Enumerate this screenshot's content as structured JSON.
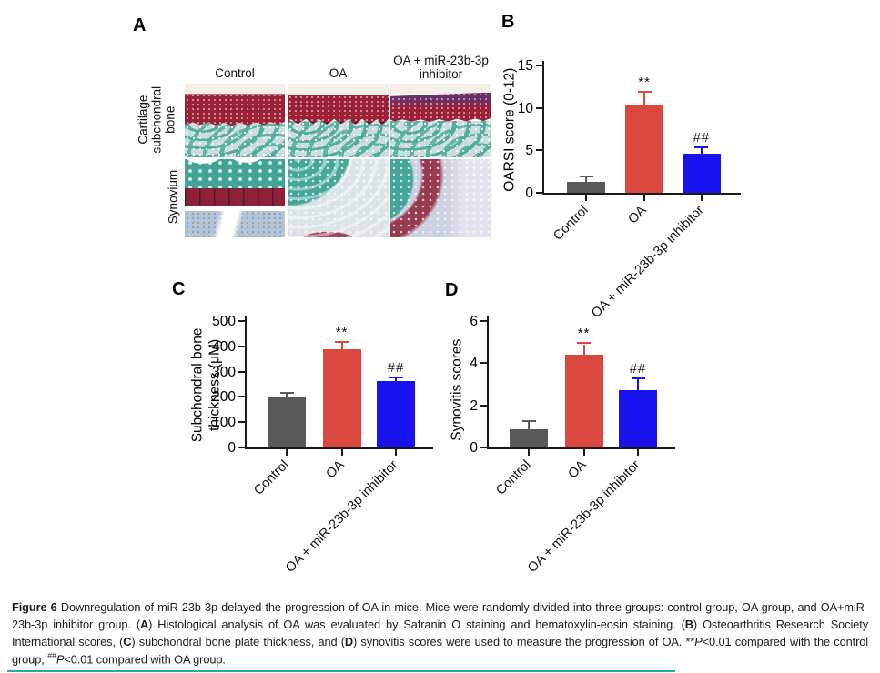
{
  "panels": {
    "a": "A",
    "b": "B",
    "c": "C",
    "d": "D"
  },
  "panel_a": {
    "column_headers": [
      "Control",
      "OA",
      "OA + miR-23b-3p inhibitor"
    ],
    "row_headers": [
      "Cartilage\nsubchondral\nbone",
      "Synovium"
    ],
    "stain_colors": {
      "cartilage_red": "#9B2138",
      "bone_teal": "#4FAC9A",
      "marrow_pale": "#CBDDDC"
    }
  },
  "colors": {
    "control_bar": "#595959",
    "oa_bar": "#D9473F",
    "inhibitor_bar": "#1712EE",
    "axis": "#1A1A1A",
    "footer_rule": "#2EA8A2"
  },
  "chart_data": [
    {
      "panel": "B",
      "type": "bar",
      "title": "",
      "xlabel": "",
      "ylabel": "OARSI score (0-12)",
      "categories": [
        "Control",
        "OA",
        "OA + miR-23b-3p inhibitor"
      ],
      "values": [
        1.3,
        10.3,
        4.6
      ],
      "errors": [
        0.5,
        1.5,
        0.6
      ],
      "annotations": [
        "",
        "**",
        "##"
      ],
      "bar_colors": [
        "#595959",
        "#D9473F",
        "#1712EE"
      ],
      "ylim": [
        0,
        15
      ],
      "yticks": [
        0,
        5,
        10,
        15
      ],
      "grid": false,
      "legend": false
    },
    {
      "panel": "C",
      "type": "bar",
      "title": "",
      "xlabel": "",
      "ylabel": "Subchondral bone\nthickness (μM)",
      "categories": [
        "Control",
        "OA",
        "OA + miR-23b-3p inhibitor"
      ],
      "values": [
        203,
        390,
        263
      ],
      "errors": [
        8,
        22,
        12
      ],
      "annotations": [
        "",
        "**",
        "##"
      ],
      "bar_colors": [
        "#595959",
        "#D9473F",
        "#1712EE"
      ],
      "ylim": [
        0,
        500
      ],
      "yticks": [
        0,
        100,
        200,
        300,
        400,
        500
      ],
      "grid": false,
      "legend": false
    },
    {
      "panel": "D",
      "type": "bar",
      "title": "",
      "xlabel": "",
      "ylabel": "Synovitis scores",
      "categories": [
        "Control",
        "OA",
        "OA + miR-23b-3p inhibitor"
      ],
      "values": [
        0.85,
        4.4,
        2.7
      ],
      "errors": [
        0.35,
        0.5,
        0.55
      ],
      "annotations": [
        "",
        "**",
        "##"
      ],
      "bar_colors": [
        "#595959",
        "#D9473F",
        "#1712EE"
      ],
      "ylim": [
        0,
        6
      ],
      "yticks": [
        0,
        2,
        4,
        6
      ],
      "grid": false,
      "legend": false
    }
  ],
  "caption": {
    "runs": [
      {
        "t": "Figure 6",
        "b": 1
      },
      {
        "t": " Downregulation of miR-23b-3p delayed the progression of OA in mice. Mice were randomly divided into three groups: control group, OA group, and OA+miR-23b-3p inhibitor group. ("
      },
      {
        "t": "A",
        "b": 1
      },
      {
        "t": ") Histological analysis of OA was evaluated by Safranin O staining and hematoxylin-eosin staining. ("
      },
      {
        "t": "B",
        "b": 1
      },
      {
        "t": ") Osteoarthritis Research Society International scores, ("
      },
      {
        "t": "C",
        "b": 1
      },
      {
        "t": ") subchondral bone plate thickness, and ("
      },
      {
        "t": "D",
        "b": 1
      },
      {
        "t": ") synovitis scores were used to measure the progression of OA. **"
      },
      {
        "t": "P",
        "i": 1
      },
      {
        "t": "<0.01 compared with the control group, "
      },
      {
        "t": "##",
        "sup": 1
      },
      {
        "t": "P",
        "i": 1
      },
      {
        "t": "<0.01 compared with OA group."
      }
    ]
  }
}
